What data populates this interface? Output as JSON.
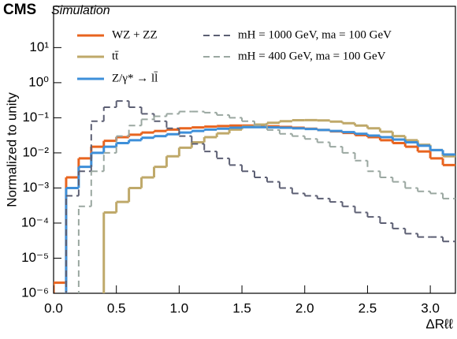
{
  "chart_data": {
    "type": "histogram",
    "title": "CMS",
    "subtitle": "Simulation",
    "xlabel": "ΔRℓℓ",
    "ylabel": "Normalized to unity",
    "bins": [
      0,
      0.1,
      0.2,
      0.3,
      0.4,
      0.5,
      0.6,
      0.7,
      0.8,
      0.9,
      1.0,
      1.1,
      1.2,
      1.3,
      1.4,
      1.5,
      1.6,
      1.7,
      1.8,
      1.9,
      2.0,
      2.1,
      2.2,
      2.3,
      2.4,
      2.5,
      2.6,
      2.7,
      2.8,
      2.9,
      3.0,
      3.1,
      3.2
    ],
    "xlim": [
      0,
      3.2
    ],
    "xticks": [
      {
        "value": 0,
        "label": "0.0"
      },
      {
        "value": 0.5,
        "label": "0.5"
      },
      {
        "value": 1,
        "label": "1.0"
      },
      {
        "value": 1.5,
        "label": "1.5"
      },
      {
        "value": 2,
        "label": "2.0"
      },
      {
        "value": 2.5,
        "label": "2.5"
      },
      {
        "value": 3,
        "label": "3.0"
      }
    ],
    "ylim": [
      1e-06,
      150
    ],
    "yscale": "log",
    "yticks": [
      {
        "value": 1e-06,
        "label": "10⁻⁶"
      },
      {
        "value": 1e-05,
        "label": "10⁻⁵"
      },
      {
        "value": 0.0001,
        "label": "10⁻⁴"
      },
      {
        "value": 0.001,
        "label": "10⁻³"
      },
      {
        "value": 0.01,
        "label": "10⁻²"
      },
      {
        "value": 0.1,
        "label": "10⁻¹"
      },
      {
        "value": 1,
        "label": "10⁰"
      },
      {
        "value": 10,
        "label": "10¹"
      }
    ],
    "series": [
      {
        "name": "WZ + ZZ",
        "color": "#e8641f",
        "linestyle": "solid",
        "values": [
          2e-06,
          0.002,
          0.007,
          0.015,
          0.022,
          0.028,
          0.033,
          0.038,
          0.042,
          0.046,
          0.05,
          0.053,
          0.056,
          0.058,
          0.06,
          0.06,
          0.059,
          0.057,
          0.055,
          0.052,
          0.049,
          0.045,
          0.041,
          0.037,
          0.032,
          0.028,
          0.023,
          0.019,
          0.015,
          0.011,
          0.007,
          0.0045
        ]
      },
      {
        "name": "tt̄",
        "color": "#bfa96a",
        "linestyle": "solid",
        "values": [
          null,
          null,
          null,
          null,
          0.0002,
          0.0004,
          0.001,
          0.002,
          0.004,
          0.008,
          0.014,
          0.02,
          0.028,
          0.036,
          0.046,
          0.056,
          0.064,
          0.072,
          0.08,
          0.085,
          0.086,
          0.084,
          0.078,
          0.07,
          0.06,
          0.05,
          0.04,
          0.03,
          0.023,
          0.017,
          0.012,
          0.008
        ]
      },
      {
        "name": "Z/γ* → ll̄",
        "color": "#3d8fd9",
        "linestyle": "solid",
        "values": [
          null,
          0.001,
          0.004,
          0.01,
          0.015,
          0.019,
          0.023,
          0.027,
          0.03,
          0.034,
          0.038,
          0.042,
          0.046,
          0.049,
          0.052,
          0.054,
          0.054,
          0.053,
          0.052,
          0.05,
          0.048,
          0.045,
          0.042,
          0.039,
          0.035,
          0.031,
          0.028,
          0.024,
          0.02,
          0.016,
          0.012,
          0.009
        ]
      },
      {
        "name": "mH = 1000 GeV, ma = 100 GeV",
        "color": "#5c5f73",
        "linestyle": "dashed",
        "values": [
          null,
          0.0006,
          0.003,
          0.08,
          0.2,
          0.3,
          0.2,
          0.13,
          0.08,
          0.05,
          0.03,
          0.018,
          0.011,
          0.007,
          0.0045,
          0.003,
          0.002,
          0.0015,
          0.001,
          0.0007,
          0.0006,
          0.0005,
          0.0004,
          0.0003,
          0.0002,
          0.00015,
          0.0001,
          7e-05,
          5e-05,
          4e-05,
          4e-05,
          3e-05
        ]
      },
      {
        "name": "mH = 400 GeV, ma = 100 GeV",
        "color": "#9aa7a0",
        "linestyle": "dashed",
        "values": [
          null,
          null,
          0.0003,
          0.003,
          0.01,
          0.03,
          0.06,
          0.09,
          0.11,
          0.13,
          0.15,
          0.15,
          0.14,
          0.12,
          0.1,
          0.08,
          0.06,
          0.045,
          0.035,
          0.03,
          0.025,
          0.02,
          0.015,
          0.01,
          0.006,
          0.003,
          0.002,
          0.0015,
          0.001,
          0.0008,
          0.0007,
          0.0005
        ]
      }
    ]
  }
}
